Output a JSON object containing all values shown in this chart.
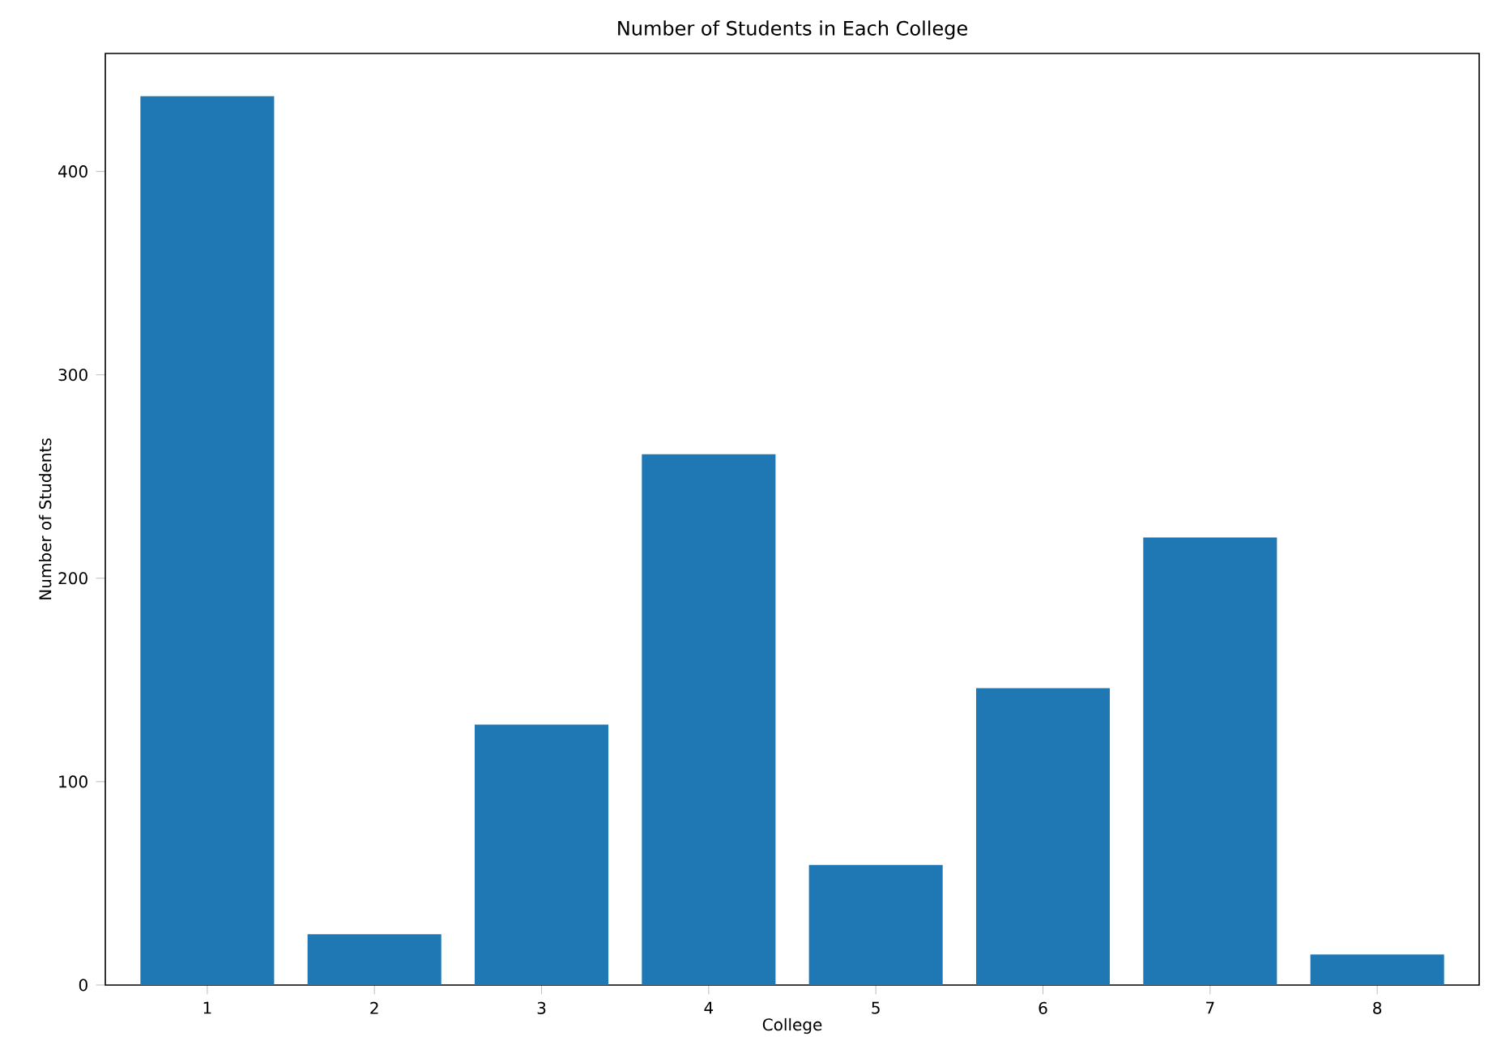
{
  "chart_data": {
    "type": "bar",
    "title": "Number of Students in Each College",
    "xlabel": "College",
    "ylabel": "Number of Students",
    "categories": [
      "1",
      "2",
      "3",
      "4",
      "5",
      "6",
      "7",
      "8"
    ],
    "values": [
      437,
      25,
      128,
      261,
      59,
      146,
      220,
      15
    ],
    "color": "#1f77b4",
    "ylim": [
      0,
      458
    ],
    "yticks": [
      0,
      100,
      200,
      300,
      400
    ],
    "grid": false
  }
}
